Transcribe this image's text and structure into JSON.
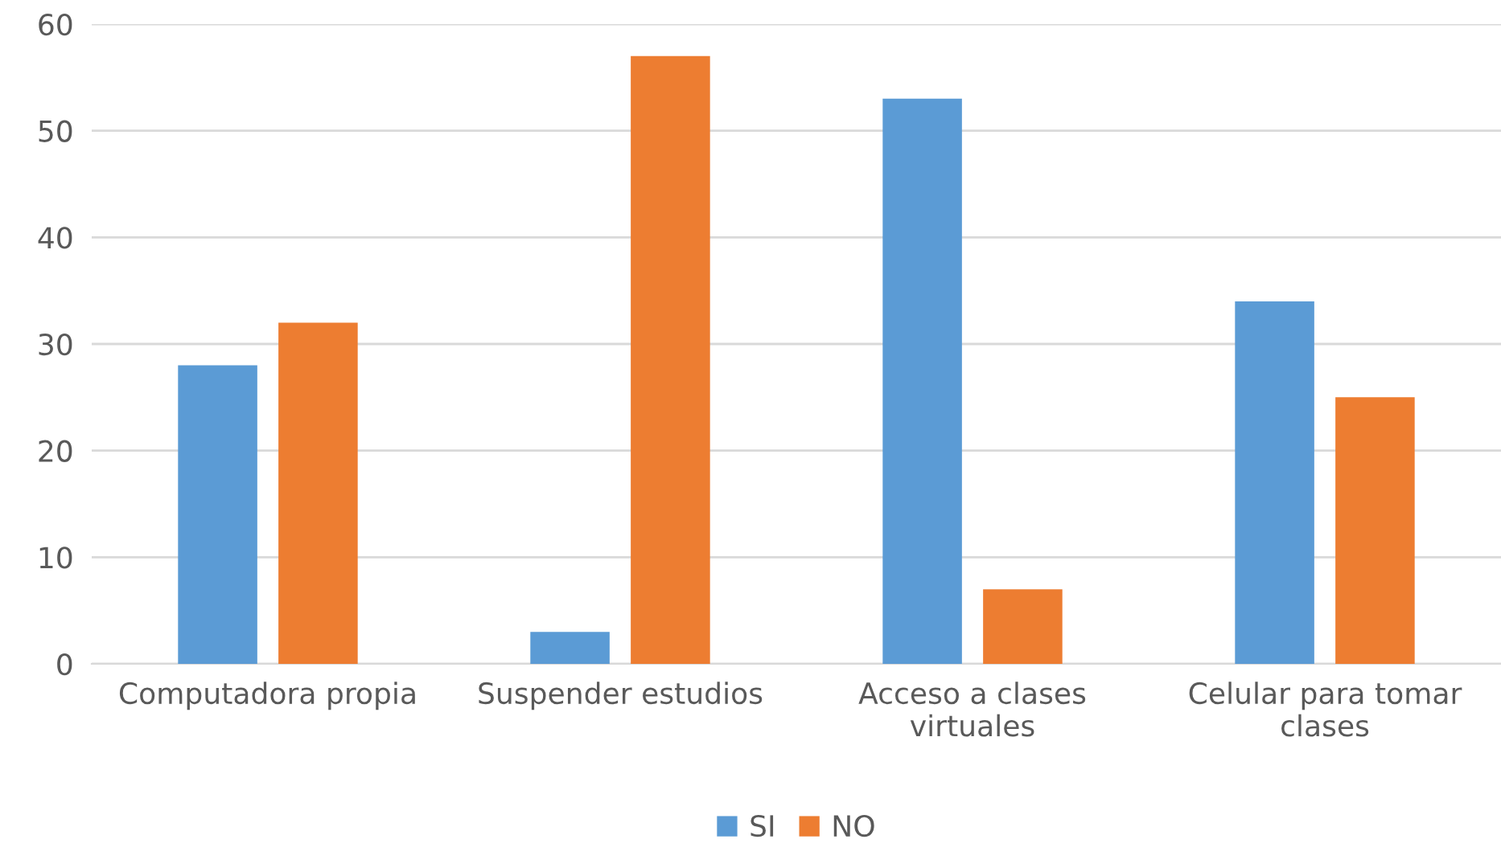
{
  "chart_data": {
    "type": "bar",
    "categories": [
      "Computadora propia",
      "Suspender estudios",
      "Acceso a clases\nvirtuales",
      "Celular para tomar\nclases"
    ],
    "series": [
      {
        "name": "SI",
        "color": "#5b9bd5",
        "values": [
          28,
          3,
          53,
          34
        ]
      },
      {
        "name": "NO",
        "color": "#ed7d31",
        "values": [
          32,
          57,
          7,
          25
        ]
      }
    ],
    "ylim": [
      0,
      60
    ],
    "yticks": [
      0,
      10,
      20,
      30,
      40,
      50,
      60
    ],
    "grid": "y",
    "legend": "bottom"
  }
}
